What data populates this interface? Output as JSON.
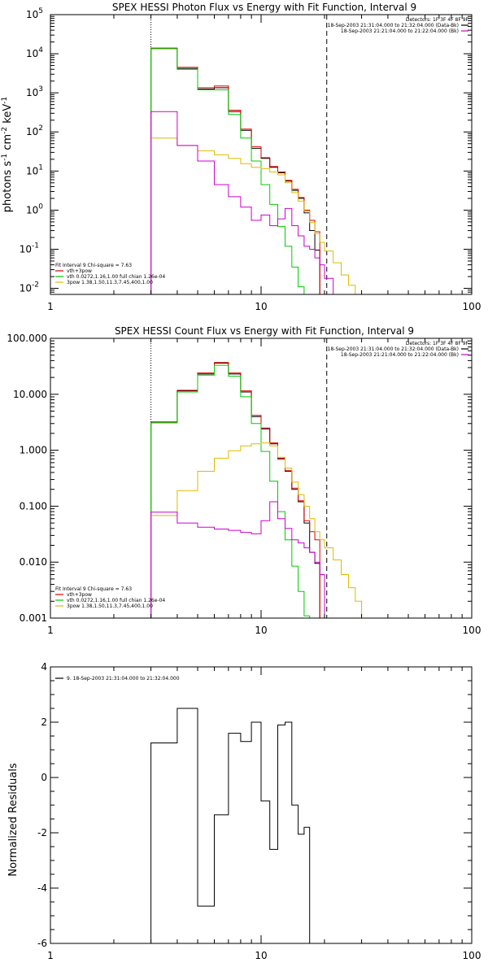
{
  "chart_data": [
    {
      "id": "photon",
      "type": "line",
      "title": "SPEX HESSI Photon Flux vs Energy with Fit Function, Interval 9",
      "ylabel_html": [
        "photons s",
        "-1",
        " cm",
        "-2",
        " keV",
        "-1"
      ],
      "x_scale": "log",
      "y_scale": "log",
      "xlim": [
        1,
        100
      ],
      "ylim": [
        0.007,
        100000
      ],
      "x_ticks": [
        {
          "v": 1,
          "label": "1"
        },
        {
          "v": 10,
          "label": "10"
        },
        {
          "v": 100,
          "label": "100"
        }
      ],
      "y_ticks": [
        {
          "v": 0.01,
          "base": "10",
          "exp": "-2"
        },
        {
          "v": 0.1,
          "base": "10",
          "exp": "-1"
        },
        {
          "v": 1,
          "base": "10",
          "exp": "0"
        },
        {
          "v": 10,
          "base": "10",
          "exp": "1"
        },
        {
          "v": 100,
          "base": "10",
          "exp": "2"
        },
        {
          "v": 1000,
          "base": "10",
          "exp": "3"
        },
        {
          "v": 10000,
          "base": "10",
          "exp": "4"
        },
        {
          "v": 100000,
          "base": "10",
          "exp": "5"
        }
      ],
      "vlines": [
        {
          "x": 3.0,
          "style": "dotted",
          "color": "#000000"
        },
        {
          "x": 20.5,
          "style": "dashed",
          "color": "#000000"
        }
      ],
      "header_annotations": [
        {
          "text": "Detectors: 1F 3F 4F 8F 9F",
          "color": "#000000"
        },
        {
          "text": "18-Sep-2003 21:31:04.000 to 21:32:04.000 (Data-Bk)",
          "color": "#000000",
          "swatch": "#000000"
        },
        {
          "text": "18-Sep-2003 21:21:04.000 to 21:22:04.000 (Bk)",
          "color": "#000000",
          "swatch": "#cc00cc"
        }
      ],
      "legend": {
        "header": "Fit Interval 9   Chi-square = 7.63",
        "items": [
          {
            "label": "vth+3pow",
            "color": "#dd0000"
          },
          {
            "label": "vth 0.0272,1.16,1.00  full chian 1.26e-04",
            "color": "#00cc00"
          },
          {
            "label": "3pow 1.38,1.50,11.3,7.45,400,1.00",
            "color": "#ddbb00"
          }
        ]
      },
      "edges": [
        3,
        4,
        5,
        6,
        7,
        8,
        9,
        10,
        11,
        12,
        13,
        14,
        15,
        16,
        17,
        18,
        19,
        20,
        22,
        24,
        26,
        28,
        30
      ],
      "series": [
        {
          "name": "Data-Bk",
          "color": "#000000",
          "values": [
            13500,
            4200,
            1250,
            1350,
            330,
            110,
            38,
            21,
            12.5,
            9.0,
            5.5,
            3.2,
            2.0,
            0.85,
            0.3,
            0.095
          ]
        },
        {
          "name": "vth+3pow",
          "color": "#dd0000",
          "values": [
            14000,
            4500,
            1350,
            1500,
            360,
            118,
            42,
            22,
            13,
            9.5,
            5.8,
            3.4,
            2.1,
            1.0,
            0.55,
            0.28
          ]
        },
        {
          "name": "vth",
          "color": "#00cc00",
          "values": [
            13500,
            4000,
            1200,
            1200,
            280,
            70,
            18,
            4.5,
            1.4,
            0.38,
            0.12,
            0.035,
            0.011,
            0.0035
          ]
        },
        {
          "name": "3pow",
          "color": "#ddbb00",
          "values": [
            70,
            45,
            33,
            26,
            21,
            15.5,
            12.5,
            11.5,
            9.5,
            8.0,
            5.0,
            2.8,
            1.7,
            0.95,
            0.48,
            0.25,
            0.15,
            0.09,
            0.045,
            0.022,
            0.012,
            0.007
          ]
        },
        {
          "name": "Bk",
          "color": "#cc00cc",
          "values": [
            330,
            45,
            18,
            4.5,
            2.2,
            1.2,
            0.55,
            0.75,
            0.4,
            0.6,
            1.1,
            0.4,
            0.22,
            0.12,
            0.1,
            0.06,
            0.04,
            0.018
          ]
        }
      ]
    },
    {
      "id": "count",
      "type": "line",
      "title": "SPEX HESSI Count Flux vs Energy with Fit Function, Interval 9",
      "x_scale": "log",
      "y_scale": "log",
      "xlim": [
        1,
        100
      ],
      "ylim": [
        0.001,
        100
      ],
      "x_ticks": [
        {
          "v": 1,
          "label": "1"
        },
        {
          "v": 10,
          "label": "10"
        },
        {
          "v": 100,
          "label": "100"
        }
      ],
      "y_ticks": [
        {
          "v": 0.001,
          "label": "0.001"
        },
        {
          "v": 0.01,
          "label": "0.010"
        },
        {
          "v": 0.1,
          "label": "0.100"
        },
        {
          "v": 1,
          "label": "1.000"
        },
        {
          "v": 10,
          "label": "10.000"
        },
        {
          "v": 100,
          "label": "100.000"
        }
      ],
      "vlines": [
        {
          "x": 3.0,
          "style": "dotted",
          "color": "#000000"
        },
        {
          "x": 20.5,
          "style": "dashed",
          "color": "#000000"
        }
      ],
      "header_annotations": [
        {
          "text": "Detectors: 1F 3F 4F 8F 9F",
          "color": "#000000"
        },
        {
          "text": "18-Sep-2003 21:31:04.000 to 21:32:04.000 (Data-Bk)",
          "color": "#000000",
          "swatch": "#000000"
        },
        {
          "text": "18-Sep-2003 21:21:04.000 to 21:22:04.000 (Bk)",
          "color": "#000000",
          "swatch": "#cc00cc"
        }
      ],
      "legend": {
        "header": "Fit Interval 9   Chi-square = 7.63",
        "items": [
          {
            "label": "vth+3pow",
            "color": "#dd0000"
          },
          {
            "label": "vth 0.0272,1.16,1.00  full chian 1.26e-04",
            "color": "#00cc00"
          },
          {
            "label": "3pow 1.38,1.50,11.3,7.45,400,1.00",
            "color": "#ddbb00"
          }
        ]
      },
      "edges": [
        3,
        4,
        5,
        6,
        7,
        8,
        9,
        10,
        11,
        12,
        13,
        14,
        15,
        16,
        17,
        18,
        19,
        20,
        22,
        24,
        26,
        28,
        30
      ],
      "series": [
        {
          "name": "Data-Bk",
          "color": "#000000",
          "values": [
            3.1,
            11.5,
            23,
            36,
            23,
            11,
            4.0,
            2.4,
            1.3,
            0.7,
            0.42,
            0.2,
            0.12,
            0.05,
            0.015,
            0.0095
          ]
        },
        {
          "name": "vth+3pow",
          "color": "#dd0000",
          "values": [
            3.2,
            11.8,
            24,
            37,
            24,
            11.5,
            4.2,
            2.5,
            1.35,
            0.72,
            0.43,
            0.21,
            0.125,
            0.055,
            0.035,
            0.025
          ]
        },
        {
          "name": "vth",
          "color": "#00cc00",
          "values": [
            3.1,
            11,
            22,
            33,
            21,
            9.0,
            3.0,
            0.95,
            0.28,
            0.08,
            0.025,
            0.0085,
            0.003,
            0.0011
          ]
        },
        {
          "name": "3pow",
          "color": "#ddbb00",
          "values": [
            0.068,
            0.19,
            0.42,
            0.72,
            0.98,
            1.2,
            1.3,
            1.35,
            1.2,
            0.75,
            0.48,
            0.27,
            0.16,
            0.1,
            0.06,
            0.035,
            0.025,
            0.018,
            0.011,
            0.006,
            0.0035,
            0.002
          ]
        },
        {
          "name": "Bk",
          "color": "#cc00cc",
          "values": [
            0.078,
            0.05,
            0.042,
            0.039,
            0.037,
            0.034,
            0.032,
            0.055,
            0.12,
            0.06,
            0.04,
            0.025,
            0.022,
            0.018,
            0.015,
            0.01,
            0.006,
            0.001
          ]
        }
      ]
    },
    {
      "id": "resid",
      "type": "line",
      "title": "",
      "ylabel": "Normalized Residuals",
      "x_scale": "log",
      "y_scale": "linear",
      "xlim": [
        1,
        100
      ],
      "ylim": [
        -6,
        4
      ],
      "x_ticks": [
        {
          "v": 1,
          "label": "1"
        },
        {
          "v": 10,
          "label": "10"
        },
        {
          "v": 100,
          "label": "100"
        }
      ],
      "y_ticks": [
        {
          "v": -6,
          "label": "-6"
        },
        {
          "v": -4,
          "label": "-4"
        },
        {
          "v": -2,
          "label": "-2"
        },
        {
          "v": 0,
          "label": "0"
        },
        {
          "v": 2,
          "label": "2"
        },
        {
          "v": 4,
          "label": "4"
        }
      ],
      "legend": {
        "header": "",
        "items": [
          {
            "label": "9. 18-Sep-2003 21:31:04.000 to 21:32:04.000",
            "color": "#000000"
          }
        ]
      },
      "edges": [
        3,
        4,
        5,
        6,
        7,
        8,
        9,
        10,
        11,
        12,
        13,
        14,
        15,
        16,
        17,
        18,
        19,
        20
      ],
      "series": [
        {
          "name": "residuals",
          "color": "#000000",
          "values": [
            1.25,
            2.5,
            -4.65,
            -1.35,
            1.6,
            1.3,
            2.0,
            -0.85,
            -2.6,
            1.9,
            2.0,
            -1.0,
            -2.05,
            -1.8
          ]
        }
      ]
    }
  ]
}
